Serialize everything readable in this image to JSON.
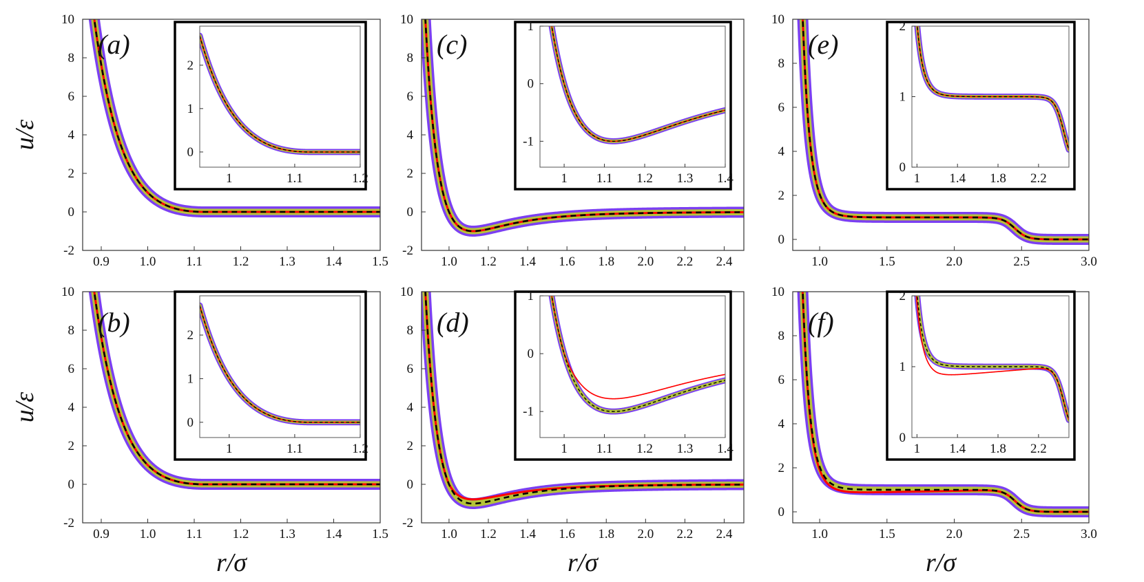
{
  "figure": {
    "ylabel": "u/ε",
    "xlabel": "r/σ"
  },
  "series_styles": [
    {
      "name": "purple band",
      "color": "#7b3ff2"
    },
    {
      "name": "olive band",
      "color": "#b5c43a"
    },
    {
      "name": "red",
      "color": "#ff0000"
    },
    {
      "name": "black dashed",
      "color": "#000000"
    }
  ],
  "chart_data": [
    {
      "type": "line",
      "panel": "a",
      "label": "(a)",
      "potential": "WCA",
      "xlim": [
        0.86,
        1.5
      ],
      "ylim": [
        -2,
        10
      ],
      "xticks": [
        0.9,
        1.0,
        1.1,
        1.2,
        1.3,
        1.4,
        1.5
      ],
      "xtick_labels": [
        "0.9",
        "1.0",
        "1.1",
        "1.2",
        "1.3",
        "1.4",
        "1.5"
      ],
      "yticks": [
        -2,
        0,
        2,
        4,
        6,
        8,
        10
      ],
      "ytick_labels": [
        "-2",
        "0",
        "2",
        "4",
        "6",
        "8",
        "10"
      ],
      "show_xlabel": false,
      "show_ylabel": true,
      "red_factor": 1.0,
      "inset": {
        "xlim": [
          0.955,
          1.2
        ],
        "ylim": [
          -0.35,
          2.9
        ],
        "xticks": [
          1,
          1.1,
          1.2
        ],
        "xtick_labels": [
          "1",
          "1.1",
          "1.2"
        ],
        "yticks": [
          0,
          1,
          2
        ],
        "ytick_labels": [
          "0",
          "1",
          "2"
        ]
      }
    },
    {
      "type": "line",
      "panel": "b",
      "label": "(b)",
      "potential": "WCA",
      "xlim": [
        0.86,
        1.5
      ],
      "ylim": [
        -2,
        10
      ],
      "xticks": [
        0.9,
        1.0,
        1.1,
        1.2,
        1.3,
        1.4,
        1.5
      ],
      "xtick_labels": [
        "0.9",
        "1.0",
        "1.1",
        "1.2",
        "1.3",
        "1.4",
        "1.5"
      ],
      "yticks": [
        -2,
        0,
        2,
        4,
        6,
        8,
        10
      ],
      "ytick_labels": [
        "-2",
        "0",
        "2",
        "4",
        "6",
        "8",
        "10"
      ],
      "show_xlabel": true,
      "show_ylabel": true,
      "red_factor": 1.0,
      "inset": {
        "xlim": [
          0.955,
          1.2
        ],
        "ylim": [
          -0.35,
          2.9
        ],
        "xticks": [
          1,
          1.1,
          1.2
        ],
        "xtick_labels": [
          "1",
          "1.1",
          "1.2"
        ],
        "yticks": [
          0,
          1,
          2
        ],
        "ytick_labels": [
          "0",
          "1",
          "2"
        ]
      }
    },
    {
      "type": "line",
      "panel": "c",
      "label": "(c)",
      "potential": "LJ",
      "xlim": [
        0.86,
        2.5
      ],
      "ylim": [
        -2,
        10
      ],
      "xticks": [
        1.0,
        1.2,
        1.4,
        1.6,
        1.8,
        2.0,
        2.2,
        2.4
      ],
      "xtick_labels": [
        "1.0",
        "1.2",
        "1.4",
        "1.6",
        "1.8",
        "2.0",
        "2.2",
        "2.4"
      ],
      "yticks": [
        -2,
        0,
        2,
        4,
        6,
        8,
        10
      ],
      "ytick_labels": [
        "-2",
        "0",
        "2",
        "4",
        "6",
        "8",
        "10"
      ],
      "show_xlabel": false,
      "show_ylabel": false,
      "red_factor": 1.0,
      "inset": {
        "xlim": [
          0.94,
          1.4
        ],
        "ylim": [
          -1.45,
          1.0
        ],
        "xticks": [
          1,
          1.1,
          1.2,
          1.3,
          1.4
        ],
        "xtick_labels": [
          "1",
          "1.1",
          "1.2",
          "1.3",
          "1.4"
        ],
        "yticks": [
          -1,
          0,
          1
        ],
        "ytick_labels": [
          "-1",
          "0",
          "1"
        ]
      }
    },
    {
      "type": "line",
      "panel": "d",
      "label": "(d)",
      "potential": "LJ",
      "xlim": [
        0.86,
        2.5
      ],
      "ylim": [
        -2,
        10
      ],
      "xticks": [
        1.0,
        1.2,
        1.4,
        1.6,
        1.8,
        2.0,
        2.2,
        2.4
      ],
      "xtick_labels": [
        "1.0",
        "1.2",
        "1.4",
        "1.6",
        "1.8",
        "2.0",
        "2.2",
        "2.4"
      ],
      "yticks": [
        -2,
        0,
        2,
        4,
        6,
        8,
        10
      ],
      "ytick_labels": [
        "-2",
        "0",
        "2",
        "4",
        "6",
        "8",
        "10"
      ],
      "show_xlabel": true,
      "show_ylabel": false,
      "red_factor": 0.78,
      "inset": {
        "xlim": [
          0.94,
          1.4
        ],
        "ylim": [
          -1.45,
          1.0
        ],
        "xticks": [
          1,
          1.1,
          1.2,
          1.3,
          1.4
        ],
        "xtick_labels": [
          "1",
          "1.1",
          "1.2",
          "1.3",
          "1.4"
        ],
        "yticks": [
          -1,
          0,
          1
        ],
        "ytick_labels": [
          "-1",
          "0",
          "1"
        ]
      }
    },
    {
      "type": "line",
      "panel": "e",
      "label": "(e)",
      "potential": "shoulder",
      "xlim": [
        0.8,
        3.0
      ],
      "ylim": [
        -0.5,
        10
      ],
      "xticks": [
        1.0,
        1.5,
        2.0,
        2.5,
        3.0
      ],
      "xtick_labels": [
        "1.0",
        "1.5",
        "2.0",
        "2.5",
        "3.0"
      ],
      "yticks": [
        0,
        2,
        4,
        6,
        8,
        10
      ],
      "ytick_labels": [
        "0",
        "2",
        "4",
        "6",
        "8",
        "10"
      ],
      "show_xlabel": false,
      "show_ylabel": false,
      "red_factor": 1.0,
      "inset": {
        "xlim": [
          0.95,
          2.5
        ],
        "ylim": [
          0,
          2
        ],
        "xticks": [
          1,
          1.4,
          1.8,
          2.2
        ],
        "xtick_labels": [
          "1",
          "1.4",
          "1.8",
          "2.2"
        ],
        "yticks": [
          0,
          1,
          2
        ],
        "ytick_labels": [
          "0",
          "1",
          "2"
        ]
      }
    },
    {
      "type": "line",
      "panel": "f",
      "label": "(f)",
      "potential": "shoulder",
      "xlim": [
        0.8,
        3.0
      ],
      "ylim": [
        -0.5,
        10
      ],
      "xticks": [
        1.0,
        1.5,
        2.0,
        2.5,
        3.0
      ],
      "xtick_labels": [
        "1.0",
        "1.5",
        "2.0",
        "2.5",
        "3.0"
      ],
      "yticks": [
        0,
        2,
        4,
        6,
        8,
        10
      ],
      "ytick_labels": [
        "0",
        "2",
        "4",
        "6",
        "8",
        "10"
      ],
      "show_xlabel": true,
      "show_ylabel": false,
      "red_factor": 0.86,
      "inset": {
        "xlim": [
          0.95,
          2.5
        ],
        "ylim": [
          0,
          2
        ],
        "xticks": [
          1,
          1.4,
          1.8,
          2.2
        ],
        "xtick_labels": [
          "1",
          "1.4",
          "1.8",
          "2.2"
        ],
        "yticks": [
          0,
          1,
          2
        ],
        "ytick_labels": [
          "0",
          "1",
          "2"
        ]
      }
    }
  ]
}
